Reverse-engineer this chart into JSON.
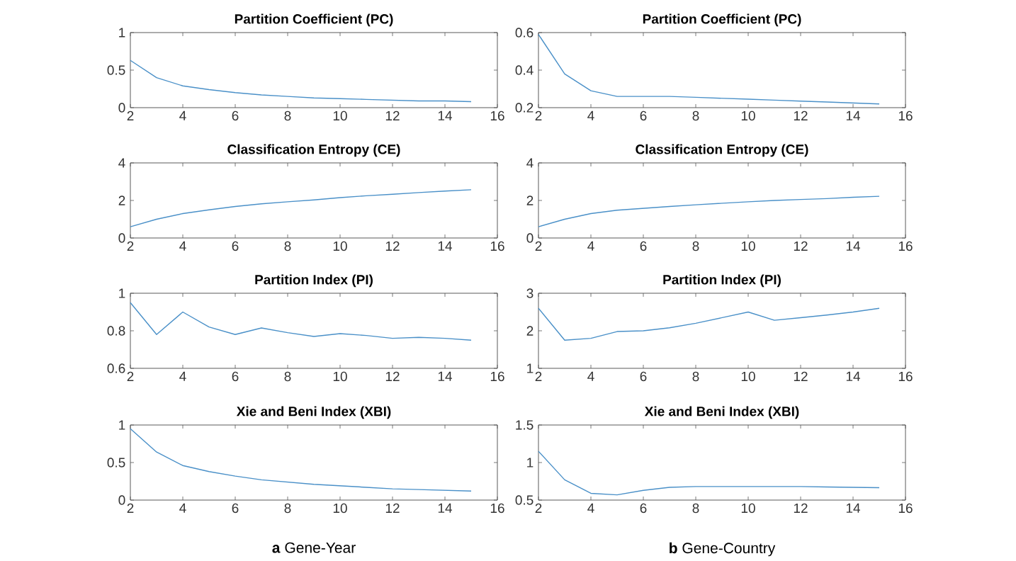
{
  "chart_data": [
    {
      "type": "line",
      "title": "Partition Coefficient (PC)",
      "x": [
        2,
        3,
        4,
        5,
        6,
        7,
        8,
        9,
        10,
        11,
        12,
        13,
        14,
        15
      ],
      "color": "#4a90c8",
      "xlim": [
        2,
        16
      ],
      "xticks": [
        2,
        4,
        6,
        8,
        10,
        12,
        14,
        16
      ],
      "ylim": [
        0,
        1
      ],
      "yticks": [
        0,
        0.5,
        1
      ],
      "values": [
        0.63,
        0.4,
        0.29,
        0.24,
        0.2,
        0.17,
        0.15,
        0.13,
        0.12,
        0.11,
        0.1,
        0.09,
        0.09,
        0.08
      ]
    },
    {
      "type": "line",
      "title": "Partition Coefficient (PC)",
      "x": [
        2,
        3,
        4,
        5,
        6,
        7,
        8,
        9,
        10,
        11,
        12,
        13,
        14,
        15
      ],
      "color": "#4a90c8",
      "xlim": [
        2,
        16
      ],
      "xticks": [
        2,
        4,
        6,
        8,
        10,
        12,
        14,
        16
      ],
      "ylim": [
        0.2,
        0.6
      ],
      "yticks": [
        0.2,
        0.4,
        0.6
      ],
      "values": [
        0.59,
        0.38,
        0.29,
        0.26,
        0.26,
        0.26,
        0.255,
        0.25,
        0.245,
        0.24,
        0.235,
        0.23,
        0.225,
        0.22
      ]
    },
    {
      "type": "line",
      "title": "Classification Entropy (CE)",
      "x": [
        2,
        3,
        4,
        5,
        6,
        7,
        8,
        9,
        10,
        11,
        12,
        13,
        14,
        15
      ],
      "color": "#4a90c8",
      "xlim": [
        2,
        16
      ],
      "xticks": [
        2,
        4,
        6,
        8,
        10,
        12,
        14,
        16
      ],
      "ylim": [
        0,
        4
      ],
      "yticks": [
        0,
        2,
        4
      ],
      "values": [
        0.6,
        1.0,
        1.3,
        1.5,
        1.68,
        1.82,
        1.93,
        2.03,
        2.15,
        2.25,
        2.33,
        2.42,
        2.5,
        2.57
      ]
    },
    {
      "type": "line",
      "title": "Classification Entropy (CE)",
      "x": [
        2,
        3,
        4,
        5,
        6,
        7,
        8,
        9,
        10,
        11,
        12,
        13,
        14,
        15
      ],
      "color": "#4a90c8",
      "xlim": [
        2,
        16
      ],
      "xticks": [
        2,
        4,
        6,
        8,
        10,
        12,
        14,
        16
      ],
      "ylim": [
        0,
        4
      ],
      "yticks": [
        0,
        2,
        4
      ],
      "values": [
        0.6,
        1.0,
        1.3,
        1.48,
        1.58,
        1.68,
        1.77,
        1.85,
        1.93,
        2.0,
        2.05,
        2.1,
        2.17,
        2.22
      ]
    },
    {
      "type": "line",
      "title": "Partition Index (PI)",
      "x": [
        2,
        3,
        4,
        5,
        6,
        7,
        8,
        9,
        10,
        11,
        12,
        13,
        14,
        15
      ],
      "color": "#4a90c8",
      "xlim": [
        2,
        16
      ],
      "xticks": [
        2,
        4,
        6,
        8,
        10,
        12,
        14,
        16
      ],
      "ylim": [
        0.6,
        1
      ],
      "yticks": [
        0.6,
        0.8,
        1
      ],
      "values": [
        0.95,
        0.78,
        0.9,
        0.82,
        0.78,
        0.815,
        0.79,
        0.77,
        0.785,
        0.775,
        0.76,
        0.765,
        0.76,
        0.75
      ]
    },
    {
      "type": "line",
      "title": "Partition Index (PI)",
      "x": [
        2,
        3,
        4,
        5,
        6,
        7,
        8,
        9,
        10,
        11,
        12,
        13,
        14,
        15
      ],
      "color": "#4a90c8",
      "xlim": [
        2,
        16
      ],
      "xticks": [
        2,
        4,
        6,
        8,
        10,
        12,
        14,
        16
      ],
      "ylim": [
        1,
        3
      ],
      "yticks": [
        1,
        2,
        3
      ],
      "values": [
        2.6,
        1.75,
        1.8,
        1.98,
        2.0,
        2.08,
        2.2,
        2.35,
        2.5,
        2.28,
        2.35,
        2.42,
        2.5,
        2.6
      ]
    },
    {
      "type": "line",
      "title": "Xie and Beni Index (XBI)",
      "x": [
        2,
        3,
        4,
        5,
        6,
        7,
        8,
        9,
        10,
        11,
        12,
        13,
        14,
        15
      ],
      "color": "#4a90c8",
      "xlim": [
        2,
        16
      ],
      "xticks": [
        2,
        4,
        6,
        8,
        10,
        12,
        14,
        16
      ],
      "ylim": [
        0,
        1
      ],
      "yticks": [
        0,
        0.5,
        1
      ],
      "values": [
        0.95,
        0.64,
        0.46,
        0.38,
        0.32,
        0.27,
        0.24,
        0.21,
        0.19,
        0.17,
        0.15,
        0.14,
        0.13,
        0.12
      ],
      "annotations": [
        "**a** Gene-Year"
      ]
    },
    {
      "type": "line",
      "title": "Xie and Beni Index (XBI)",
      "x": [
        2,
        3,
        4,
        5,
        6,
        7,
        8,
        9,
        10,
        11,
        12,
        13,
        14,
        15
      ],
      "color": "#4a90c8",
      "xlim": [
        2,
        16
      ],
      "xticks": [
        2,
        4,
        6,
        8,
        10,
        12,
        14,
        16
      ],
      "ylim": [
        0.5,
        1.5
      ],
      "yticks": [
        0.5,
        1,
        1.5
      ],
      "values": [
        1.15,
        0.77,
        0.59,
        0.57,
        0.63,
        0.67,
        0.68,
        0.68,
        0.68,
        0.68,
        0.68,
        0.675,
        0.67,
        0.665
      ],
      "annotations": [
        "**b** Gene-Country"
      ]
    }
  ]
}
